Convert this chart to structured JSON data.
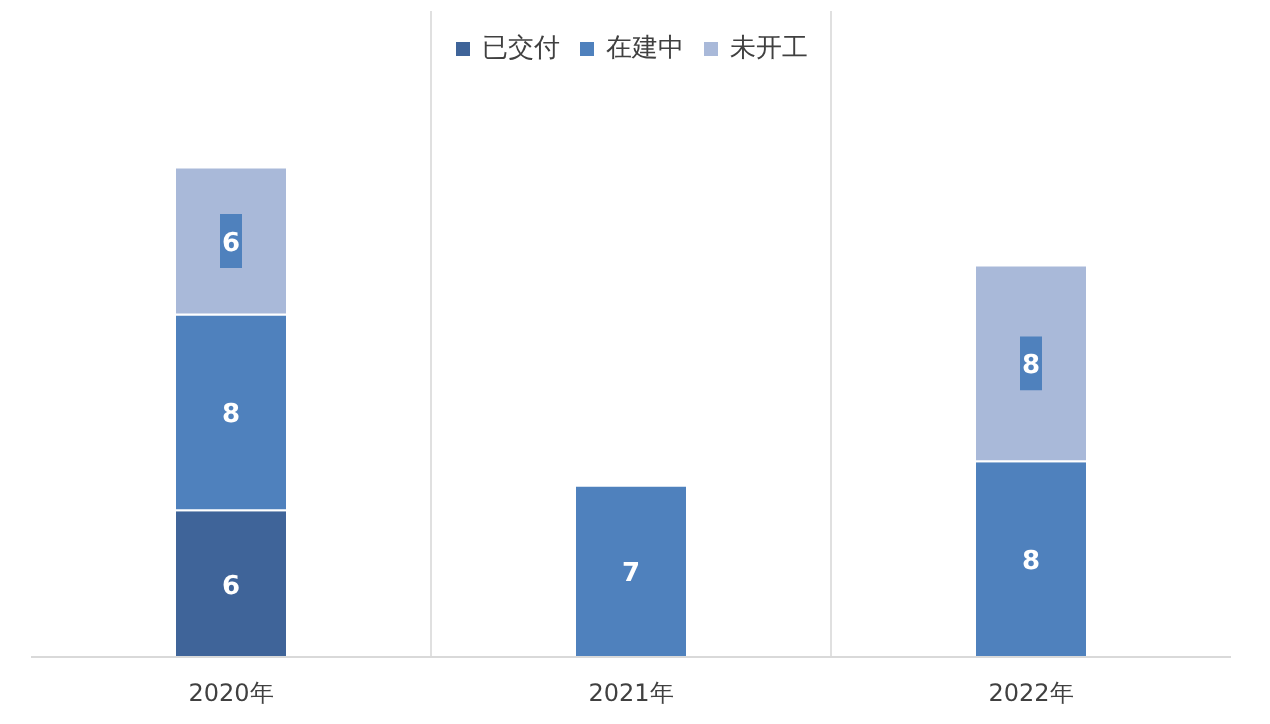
{
  "chart_data": {
    "type": "bar",
    "stacked": true,
    "categories": [
      "2020年",
      "2021年",
      "2022年"
    ],
    "series": [
      {
        "name": "已交付",
        "color": "#3f6499",
        "values": [
          6,
          null,
          null
        ]
      },
      {
        "name": "在建中",
        "color": "#4f81bd",
        "values": [
          8,
          7,
          8
        ]
      },
      {
        "name": "未开工",
        "color": "#a9b9d9",
        "values": [
          6,
          null,
          8
        ]
      }
    ],
    "data_labels": true,
    "legend": "top",
    "grid": "x"
  }
}
